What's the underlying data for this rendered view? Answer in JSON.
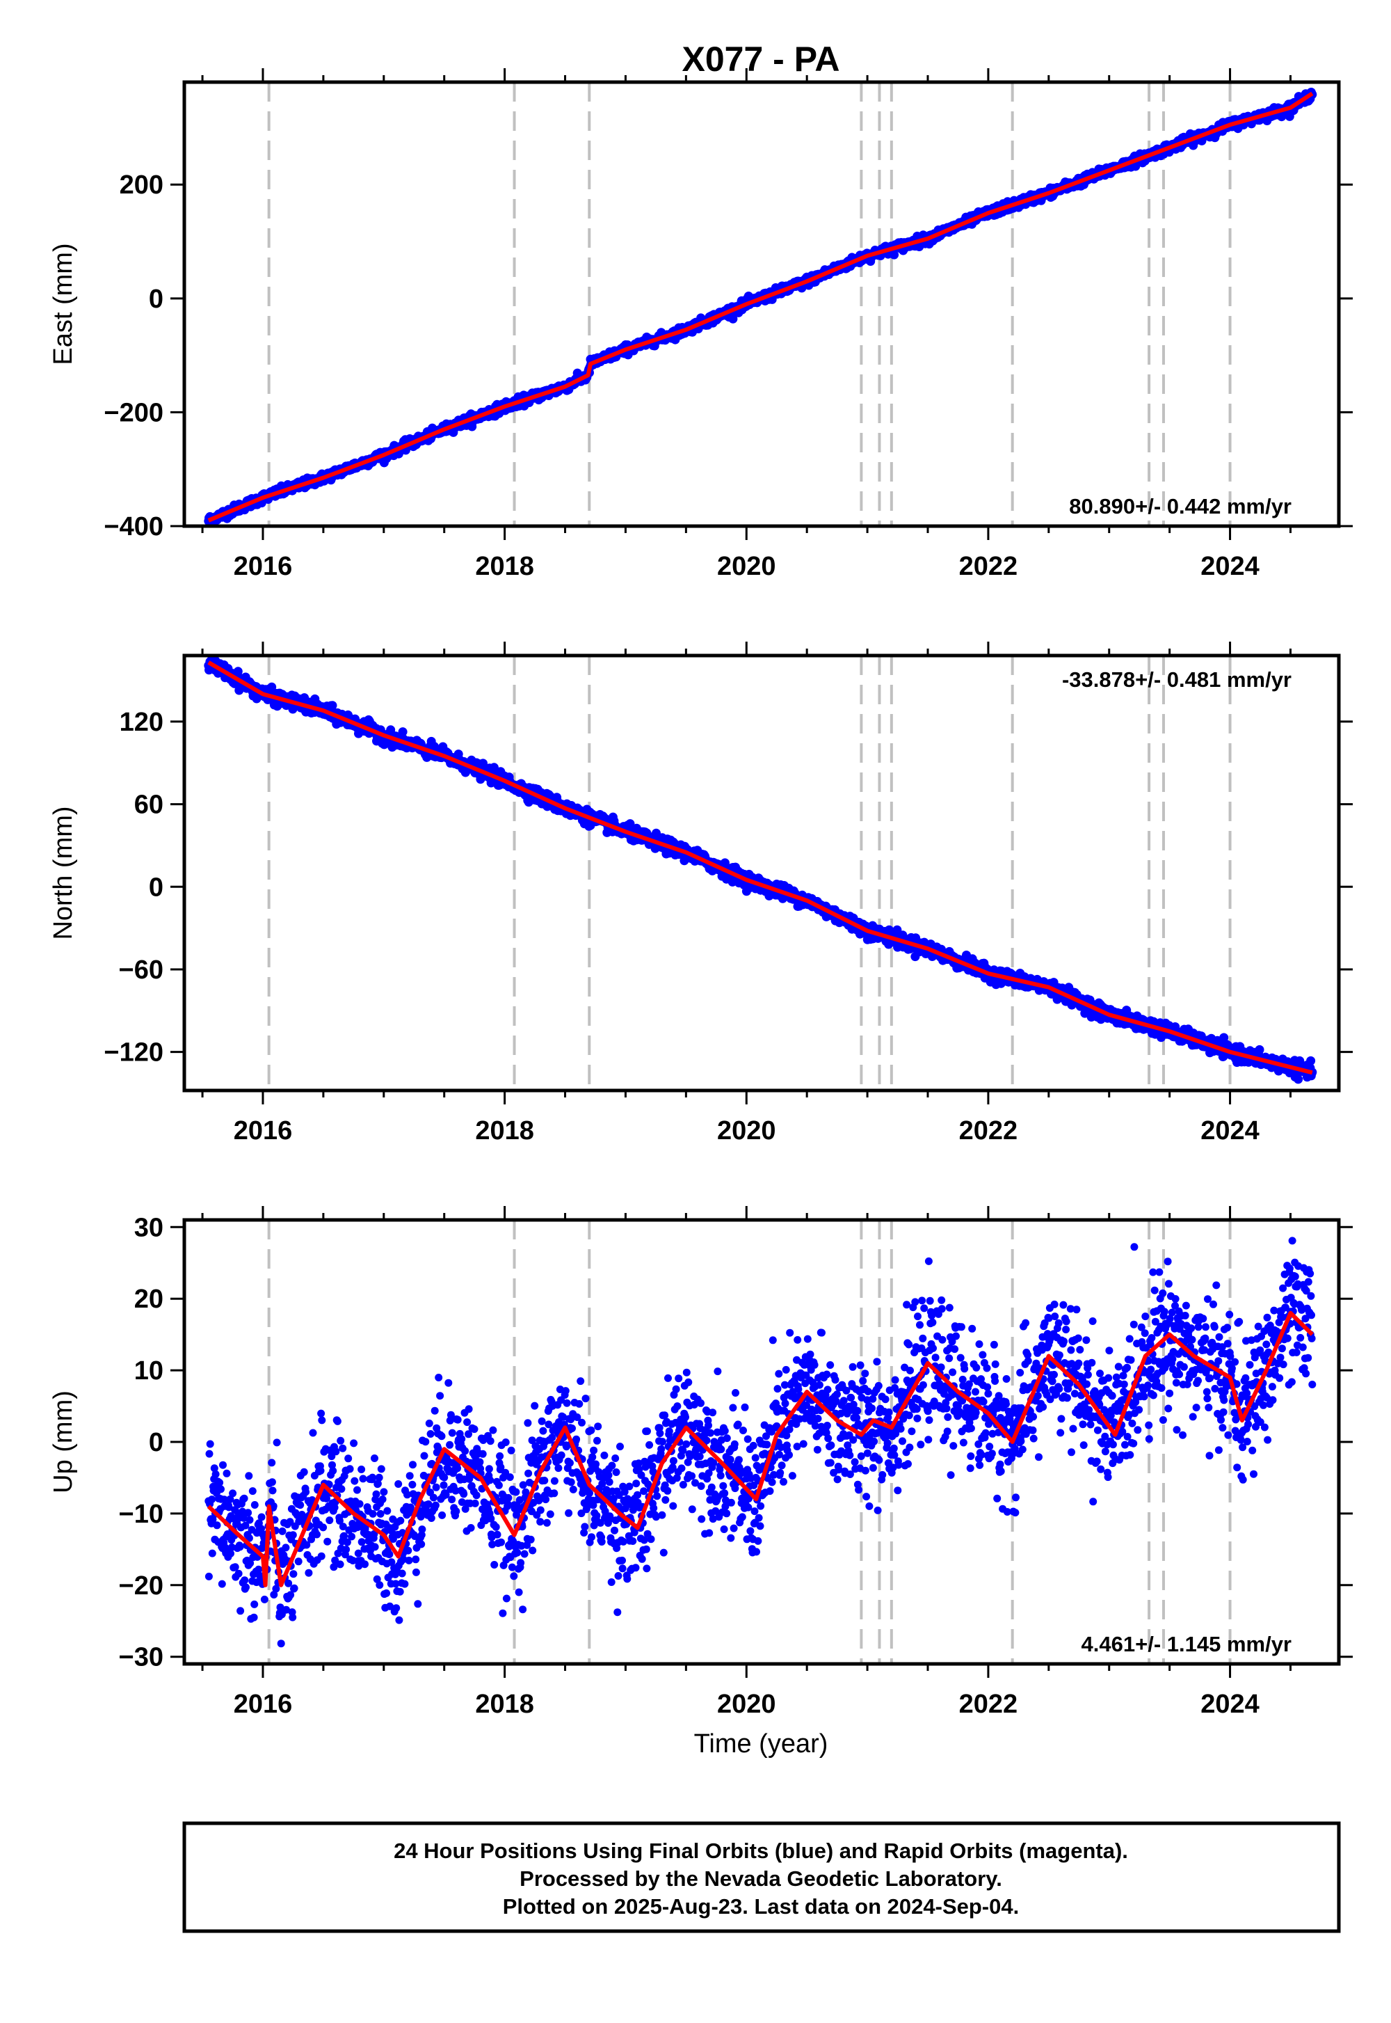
{
  "title": "X077 - PA",
  "footer": {
    "lines": [
      "24 Hour Positions Using Final Orbits (blue) and Rapid Orbits (magenta).",
      "Processed by the Nevada Geodetic Laboratory.",
      "Plotted on 2025-Aug-23. Last data on 2024-Sep-04."
    ]
  },
  "colors": {
    "data": "#0000ff",
    "model": "#ff0000",
    "event_lines": "#c0c0c0",
    "frame": "#000000"
  },
  "chart_data": [
    {
      "type": "scatter",
      "panel": "east",
      "ylabel": "East (mm)",
      "xlabel": "",
      "xlim": [
        2015.35,
        2024.9
      ],
      "ylim": [
        -400,
        380
      ],
      "xticks": [
        2016,
        2018,
        2020,
        2022,
        2024
      ],
      "xtick_labels": [
        "2016",
        "2018",
        "2020",
        "2022",
        "2024"
      ],
      "yticks": [
        -400,
        -200,
        0,
        200
      ],
      "ytick_labels": [
        "−400",
        "−200",
        "0",
        "200"
      ],
      "rate_label": "80.890+/- 0.442 mm/yr",
      "rate_position": "bottom-right",
      "event_lines_x": [
        2016.05,
        2018.08,
        2018.7,
        2020.95,
        2021.1,
        2021.2,
        2022.2,
        2023.33,
        2023.45,
        2024.0
      ],
      "model_x": [
        2015.55,
        2016.0,
        2016.5,
        2017.0,
        2017.5,
        2018.0,
        2018.5,
        2018.69,
        2018.71,
        2019.0,
        2019.5,
        2020.0,
        2020.5,
        2021.0,
        2021.5,
        2022.0,
        2022.5,
        2023.0,
        2023.5,
        2024.0,
        2024.5,
        2024.68
      ],
      "model_y": [
        -390,
        -350,
        -315,
        -275,
        -230,
        -190,
        -155,
        -135,
        -115,
        -90,
        -55,
        -10,
        30,
        75,
        105,
        150,
        185,
        225,
        265,
        305,
        335,
        360
      ],
      "scatter_noise_mm": 4
    },
    {
      "type": "scatter",
      "panel": "north",
      "ylabel": "North (mm)",
      "xlabel": "",
      "xlim": [
        2015.35,
        2024.9
      ],
      "ylim": [
        -148,
        168
      ],
      "xticks": [
        2016,
        2018,
        2020,
        2022,
        2024
      ],
      "xtick_labels": [
        "2016",
        "2018",
        "2020",
        "2022",
        "2024"
      ],
      "yticks": [
        -120,
        -60,
        0,
        60,
        120
      ],
      "ytick_labels": [
        "−120",
        "−60",
        "0",
        "60",
        "120"
      ],
      "rate_label": "-33.878+/- 0.481 mm/yr",
      "rate_position": "top-right",
      "event_lines_x": [
        2016.05,
        2018.08,
        2018.7,
        2020.95,
        2021.1,
        2021.2,
        2022.2,
        2023.33,
        2023.45,
        2024.0
      ],
      "model_x": [
        2015.55,
        2016.0,
        2016.5,
        2017.0,
        2017.5,
        2018.0,
        2018.5,
        2019.0,
        2019.5,
        2020.0,
        2020.5,
        2021.0,
        2021.5,
        2022.0,
        2022.5,
        2023.0,
        2023.5,
        2024.0,
        2024.68
      ],
      "model_y": [
        163,
        140,
        128,
        110,
        95,
        77,
        57,
        40,
        25,
        5,
        -10,
        -32,
        -45,
        -63,
        -73,
        -93,
        -105,
        -120,
        -135
      ],
      "scatter_noise_mm": 2.5
    },
    {
      "type": "scatter",
      "panel": "up",
      "ylabel": "Up (mm)",
      "xlabel": "Time (year)",
      "xlim": [
        2015.35,
        2024.9
      ],
      "ylim": [
        -31,
        31
      ],
      "xticks": [
        2016,
        2018,
        2020,
        2022,
        2024
      ],
      "xtick_labels": [
        "2016",
        "2018",
        "2020",
        "2022",
        "2024"
      ],
      "yticks": [
        -30,
        -20,
        -10,
        0,
        10,
        20,
        30
      ],
      "ytick_labels": [
        "−30",
        "−20",
        "−10",
        "0",
        "10",
        "20",
        "30"
      ],
      "rate_label": "4.461+/- 1.145 mm/yr",
      "rate_position": "bottom-right",
      "event_lines_x": [
        2016.05,
        2018.08,
        2018.7,
        2020.95,
        2021.1,
        2021.2,
        2022.2,
        2023.33,
        2023.45,
        2024.0
      ],
      "model_x": [
        2015.55,
        2015.8,
        2016.0,
        2016.02,
        2016.05,
        2016.15,
        2016.5,
        2016.75,
        2017.0,
        2017.12,
        2017.3,
        2017.5,
        2017.8,
        2018.08,
        2018.3,
        2018.5,
        2018.7,
        2018.95,
        2019.1,
        2019.3,
        2019.5,
        2019.8,
        2020.08,
        2020.25,
        2020.5,
        2020.75,
        2020.95,
        2021.05,
        2021.2,
        2021.5,
        2021.75,
        2022.0,
        2022.2,
        2022.5,
        2022.75,
        2023.05,
        2023.3,
        2023.5,
        2023.7,
        2024.0,
        2024.1,
        2024.3,
        2024.5,
        2024.68
      ],
      "model_y": [
        -9,
        -13,
        -16,
        -20,
        -9,
        -20,
        -6,
        -10,
        -13,
        -16,
        -8,
        -1,
        -5,
        -13,
        -4,
        2,
        -6,
        -10,
        -12,
        -3,
        2,
        -3,
        -8,
        1,
        7,
        3,
        1,
        3,
        2,
        11,
        7,
        4,
        0,
        12,
        8,
        1,
        12,
        15,
        12,
        9,
        3,
        10,
        18,
        15
      ],
      "scatter_noise_mm": 4.5
    }
  ]
}
